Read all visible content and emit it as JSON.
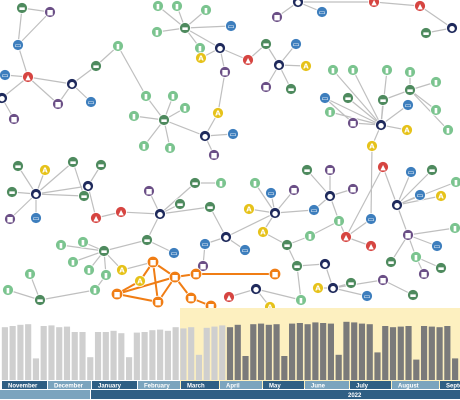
{
  "colors": {
    "edge": "#bfbfbf",
    "highlight": "#f07d14",
    "navy": "#1f2a5c",
    "red": "#d64541",
    "green": "#4e8a5e",
    "mint": "#7bc48f",
    "purple": "#6b4f86",
    "blue": "#3d7ebd",
    "yellow": "#e6c21a",
    "bar": "#cfcfcf",
    "bar_selected": "#7a7a7a",
    "selection": "#fdf0c0",
    "axis_light": "#7ba4be",
    "axis_dark": "#2f5f84"
  },
  "node_types": {
    "N": {
      "color_key": "navy",
      "icon": "person-icon",
      "glyph": "●"
    },
    "R": {
      "color_key": "red",
      "icon": "building-icon",
      "glyph": "▲"
    },
    "G": {
      "color_key": "green",
      "icon": "truck-icon",
      "glyph": "▬"
    },
    "M": {
      "color_key": "mint",
      "icon": "phone-icon",
      "glyph": "▮"
    },
    "P": {
      "color_key": "purple",
      "icon": "document-icon",
      "glyph": "■"
    },
    "B": {
      "color_key": "blue",
      "icon": "laptop-icon",
      "glyph": "▭"
    },
    "Y": {
      "color_key": "yellow",
      "icon": "account-icon",
      "glyph": "A"
    },
    "O": {
      "color_key": "highlight",
      "icon": "selected-item-icon",
      "glyph": "■"
    }
  },
  "timebar": {
    "months": [
      "November",
      "December",
      "January",
      "February",
      "March",
      "April",
      "May",
      "June",
      "July",
      "August",
      "September"
    ],
    "year_label": "2022",
    "bar_counts": [
      0.88,
      0.9,
      0.92,
      0.93,
      0.36,
      0.9,
      0.91,
      0.88,
      0.89,
      0.8,
      0.8,
      0.38,
      0.8,
      0.8,
      0.82,
      0.78,
      0.38,
      0.79,
      0.8,
      0.83,
      0.84,
      0.82,
      0.88,
      0.86,
      0.88,
      0.42,
      0.87,
      0.89,
      0.91,
      0.88,
      0.92,
      0.4,
      0.93,
      0.94,
      0.92,
      0.93,
      0.4,
      0.94,
      0.95,
      0.93,
      0.96,
      0.95,
      0.94,
      0.42,
      0.97,
      0.96,
      0.94,
      0.93,
      0.46,
      0.9,
      0.88,
      0.89,
      0.9,
      0.34,
      0.9,
      0.89,
      0.88,
      0.9,
      0.36
    ],
    "selected_from": 29,
    "selected_to": 58
  }
}
